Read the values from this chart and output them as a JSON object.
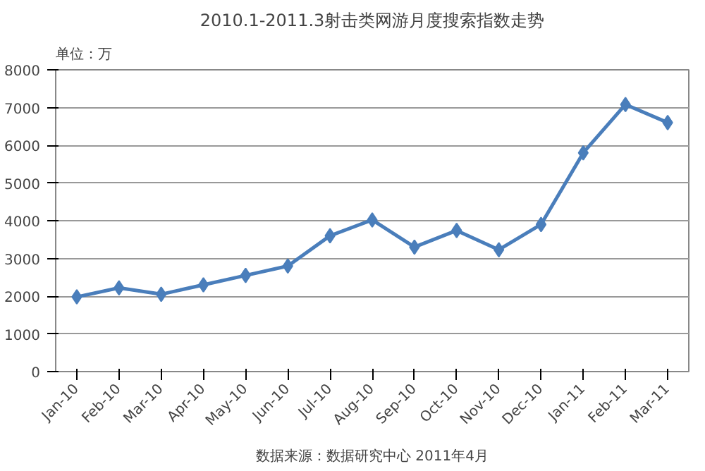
{
  "chart_data": {
    "type": "line",
    "title": "2010.1-2011.3射击类网游月度搜索指数走势",
    "ylabel": "单位：万",
    "categories": [
      "Jan-10",
      "Feb-10",
      "Mar-10",
      "Apr-10",
      "May-10",
      "Jun-10",
      "Jul-10",
      "Aug-10",
      "Sep-10",
      "Oct-10",
      "Nov-10",
      "Dec-10",
      "Jan-11",
      "Feb-11",
      "Mar-11"
    ],
    "series": [
      {
        "color": "#4a7ebb",
        "values": [
          1980,
          2220,
          2050,
          2300,
          2550,
          2800,
          3600,
          4020,
          3300,
          3740,
          3230,
          3900,
          5800,
          7080,
          6600
        ]
      }
    ],
    "ylim": [
      0,
      8000
    ],
    "yticks": [
      0,
      1000,
      2000,
      3000,
      4000,
      5000,
      6000,
      7000,
      8000
    ],
    "grid": "y",
    "marker": "diamond",
    "line_style": "solid",
    "annotations": [
      "数据来源：数据研究中心 2011年4月"
    ]
  }
}
